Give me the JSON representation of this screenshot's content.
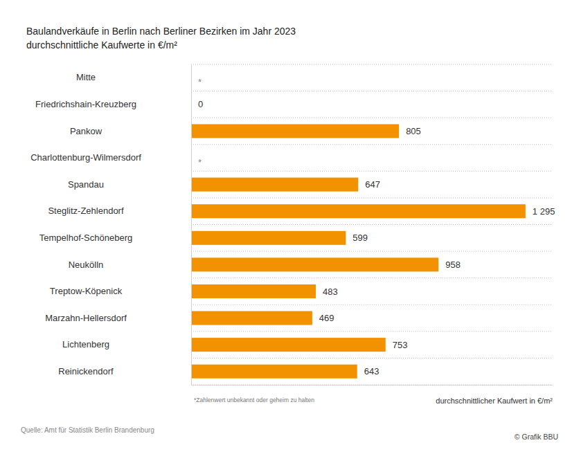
{
  "chart_data": {
    "type": "bar",
    "orientation": "horizontal",
    "title": "Baulandverkäufe in Berlin nach Berliner Bezirken im Jahr 2023",
    "subtitle": "durchschnittliche Kaufwerte in €/m²",
    "x_label": "durchschnittlicher Kaufwert in €/m²",
    "footnote": "*Zahlenwert unbekannt oder geheim zu halten",
    "source": "Quelle: Amt für Statistik Berlin Brandenburg",
    "credit": "© Grafik BBU",
    "categories": [
      "Mitte",
      "Friedrichshain-Kreuzberg",
      "Pankow",
      "Charlottenburg-Wilmersdorf",
      "Spandau",
      "Steglitz-Zehlendorf",
      "Tempelhof-Schöneberg",
      "Neukölln",
      "Treptow-Köpenick",
      "Marzahn-Hellersdorf",
      "Lichtenberg",
      "Reinickendorf"
    ],
    "values": [
      null,
      0,
      805,
      null,
      647,
      1295,
      599,
      958,
      483,
      469,
      753,
      643
    ],
    "value_labels": [
      "*",
      "0",
      "805",
      "*",
      "647",
      "1 295",
      "599",
      "958",
      "483",
      "469",
      "753",
      "643"
    ],
    "color": "#f39200",
    "xlim": [
      0,
      1400
    ],
    "xticks": [],
    "grid": true,
    "data_labels": true,
    "tick_labels": "y"
  }
}
